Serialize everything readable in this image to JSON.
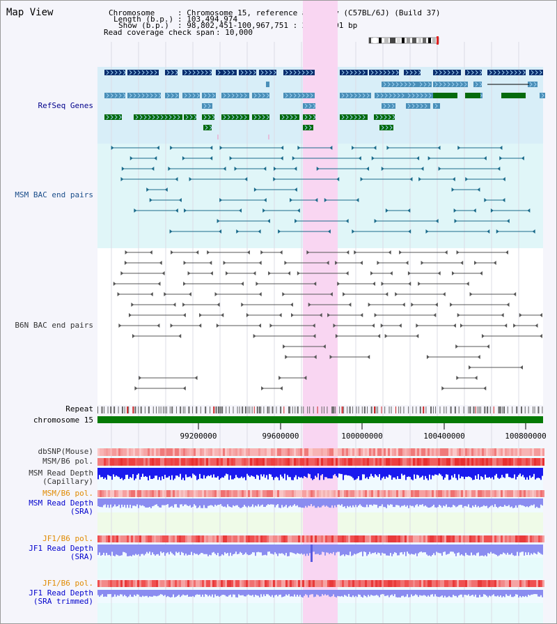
{
  "title": "Map View",
  "info": {
    "chromosome_key": "Chromosome",
    "chromosome_val": ": Chromosome 15, reference assembly (C57BL/6J) (Build 37)",
    "length_key": "Length (b.p.)",
    "length_val": ": 103,494,974",
    "show_key": "Show (b.p.)",
    "show_val": ": 98,802,451-100,967,751 : 2,165,301 bp",
    "coverage_key": "Read coverage check span",
    "coverage_val": ": 10,000"
  },
  "tracks": {
    "refseq": "RefSeq Genes",
    "msm_bac": "MSM BAC end pairs",
    "b6n_bac": "B6N BAC end pairs",
    "repeat": "Repeat",
    "chromosome": "chromosome 15",
    "dbsnp": "dbSNP(Mouse)",
    "msm_pol": "MSM/B6 pol.",
    "msm_depth_cap_1": "MSM Read Depth",
    "msm_depth_cap_2": "(Capillary)",
    "msm_pol_2": "MSM/B6 pol.",
    "msm_depth_sra_1": "MSM Read Depth",
    "msm_depth_sra_2": "(SRA)",
    "jf1_pol": "JF1/B6 pol.",
    "jf1_depth_1": "JF1 Read Depth",
    "jf1_depth_2": "(SRA)",
    "jf1_pol_2": "JF1/B6 pol.",
    "jf1_trim_1": "JF1 Read Depth",
    "jf1_trim_2": "(SRA trimmed)"
  },
  "axis": {
    "ticks": [
      "99200000",
      "99600000",
      "100000000",
      "100400000",
      "100800000"
    ],
    "tick_values": [
      99200000,
      99600000,
      100000000,
      100400000,
      100800000
    ]
  },
  "colors": {
    "highlight": "#f9d6f2",
    "refseq_bg": "#d8eef8",
    "msm_bg": "#e0f6f8",
    "gene_navy": "#0a2e6e",
    "gene_teal": "#4a8fb8",
    "gene_green": "#056b0d",
    "chrom_green": "#057a05",
    "depth_blue": "#1a1aee",
    "depth_lavender": "#8a8cf0"
  }
}
